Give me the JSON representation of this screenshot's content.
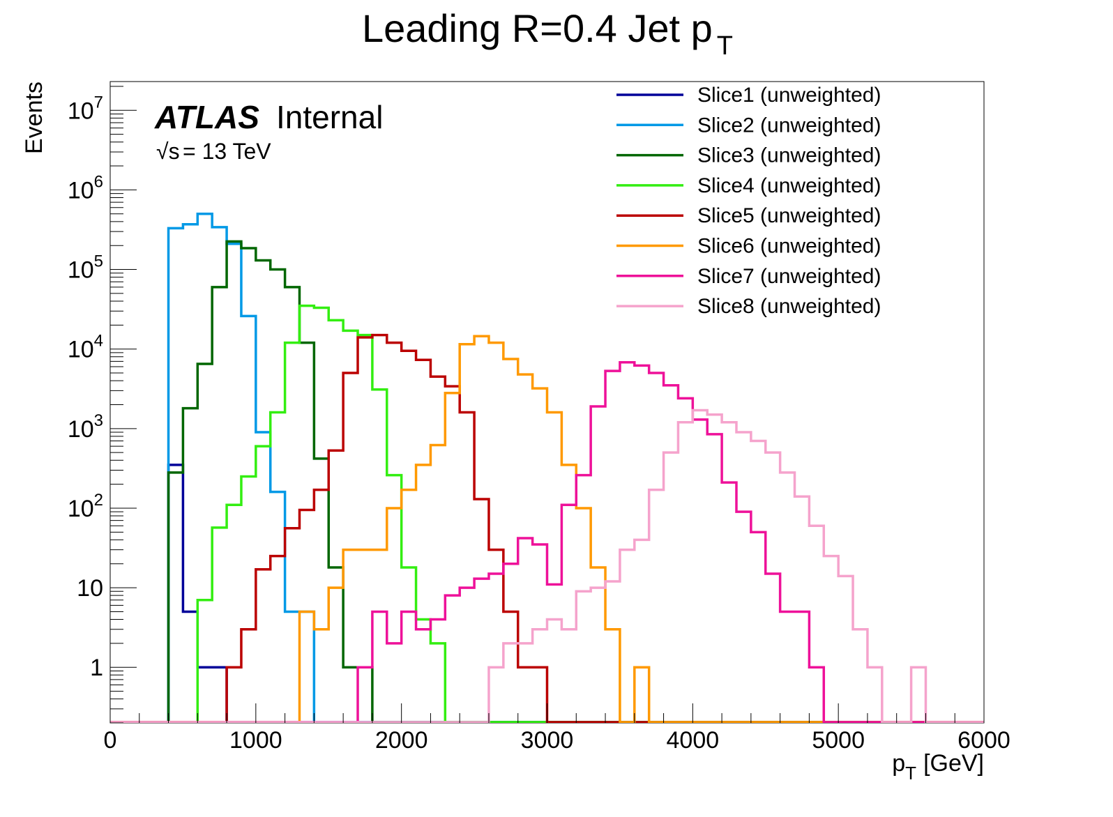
{
  "chart_data": {
    "type": "histogram-step",
    "title": "Leading R=0.4 Jet p",
    "title_subscript": "T",
    "xlabel": "p",
    "xlabel_subscript": "T",
    "xlabel_unit": "[GeV]",
    "ylabel": "Events",
    "xlim": [
      0,
      6000
    ],
    "ylim": [
      0.2,
      23000000
    ],
    "yscale": "log",
    "bin_width": 100,
    "grid": false,
    "legend_position": "top-right",
    "x_ticks": [
      "0",
      "1000",
      "2000",
      "3000",
      "4000",
      "5000",
      "6000"
    ],
    "y_ticks": [
      {
        "v": 1,
        "base": "1",
        "exp": ""
      },
      {
        "v": 10,
        "base": "10",
        "exp": ""
      },
      {
        "v": 100,
        "base": "10",
        "exp": "2"
      },
      {
        "v": 1000,
        "base": "10",
        "exp": "3"
      },
      {
        "v": 10000,
        "base": "10",
        "exp": "4"
      },
      {
        "v": 100000,
        "base": "10",
        "exp": "5"
      },
      {
        "v": 1000000,
        "base": "10",
        "exp": "6"
      },
      {
        "v": 10000000,
        "base": "10",
        "exp": "7"
      }
    ],
    "annotations": {
      "experiment": "ATLAS",
      "status": "Internal",
      "energy_sqrt": "√s",
      "energy_text": "= 13 TeV"
    },
    "series": [
      {
        "name": "Slice1 (unweighted)",
        "color": "#000099",
        "x_start": 400,
        "values": [
          350,
          5,
          1,
          1
        ]
      },
      {
        "name": "Slice2 (unweighted)",
        "color": "#0099e6",
        "x_start": 400,
        "values": [
          330000,
          370000,
          500000,
          340000,
          210000,
          26000,
          900,
          160,
          5,
          5
        ]
      },
      {
        "name": "Slice3 (unweighted)",
        "color": "#006600",
        "x_start": 400,
        "values": [
          280,
          1800,
          6500,
          60000,
          225000,
          185000,
          130000,
          100000,
          60000,
          12000,
          420,
          18,
          1,
          1
        ]
      },
      {
        "name": "Slice4 (unweighted)",
        "color": "#33ee11",
        "x_start": 600,
        "values": [
          7,
          57,
          110,
          250,
          600,
          1600,
          12000,
          35000,
          33000,
          23000,
          17000,
          15000,
          3100,
          260,
          18,
          4,
          2
        ]
      },
      {
        "name": "Slice5 (unweighted)",
        "color": "#bb0000",
        "x_start": 800,
        "values": [
          1,
          3,
          17,
          25,
          56,
          95,
          170,
          530,
          5000,
          14000,
          15000,
          12000,
          9500,
          7300,
          4500,
          3400,
          1600,
          130,
          30,
          5,
          1,
          1
        ]
      },
      {
        "name": "Slice6 (unweighted)",
        "color": "#ff9900",
        "x_start": 1300,
        "values": [
          5,
          3,
          10,
          30,
          30,
          30,
          100,
          170,
          350,
          620,
          2800,
          11500,
          14500,
          12000,
          7500,
          4800,
          3200,
          1600,
          350,
          100,
          18,
          3,
          0,
          1
        ]
      },
      {
        "name": "Slice7 (unweighted)",
        "color": "#ee1199",
        "x_start": 1700,
        "values": [
          1,
          5,
          2,
          5,
          3,
          4,
          8,
          10,
          13,
          15,
          20,
          42,
          35,
          11,
          110,
          260,
          1900,
          5300,
          6800,
          6200,
          5000,
          3500,
          2400,
          1300,
          850,
          210,
          90,
          50,
          15,
          5,
          5,
          1
        ]
      },
      {
        "name": "Slice8 (unweighted)",
        "color": "#f5a3cc",
        "x_start": 2600,
        "values": [
          1,
          2,
          2,
          3,
          4,
          3,
          9,
          10,
          12,
          30,
          40,
          170,
          500,
          1200,
          1700,
          1500,
          1200,
          900,
          700,
          500,
          280,
          140,
          60,
          25,
          14,
          3,
          1,
          0,
          0,
          1
        ]
      }
    ]
  }
}
